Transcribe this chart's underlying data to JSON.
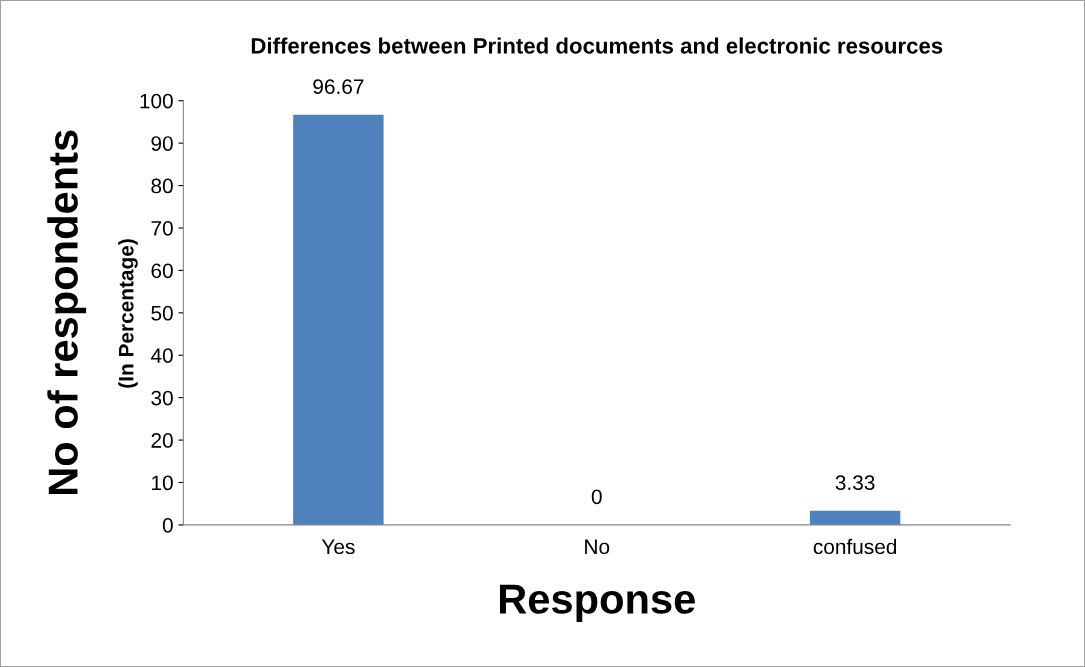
{
  "chart_data": {
    "type": "bar",
    "title": "Differences between Printed documents and electronic resources",
    "categories": [
      "Yes",
      "No",
      "confused"
    ],
    "values": [
      96.67,
      0,
      3.33
    ],
    "color": "#4f81bd",
    "xlabel": "Response",
    "ylabel": "No of respondents",
    "annotations": [
      "(In Percentage)"
    ],
    "ylim": [
      0,
      100
    ],
    "yticks": [
      0,
      10,
      20,
      30,
      40,
      50,
      60,
      70,
      80,
      90,
      100
    ],
    "grid": false,
    "data_labels": true
  }
}
